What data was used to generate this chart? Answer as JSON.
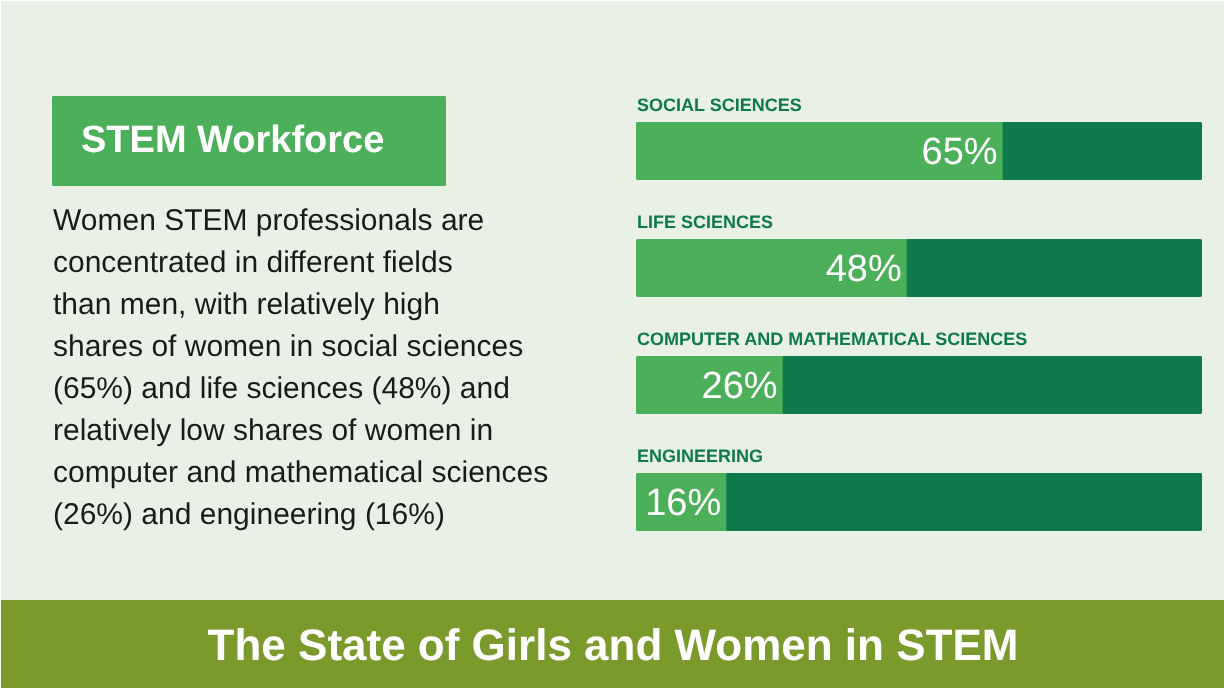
{
  "chart_data": {
    "type": "bar",
    "orientation": "horizontal",
    "stacked": true,
    "title": "STEM Workforce",
    "categories": [
      "SOCIAL SCIENCES",
      "LIFE SCIENCES",
      "COMPUTER AND MATHEMATICAL SCIENCES",
      "ENGINEERING"
    ],
    "series": [
      {
        "color": "#4caf5a",
        "values": [
          65,
          48,
          26,
          16
        ],
        "value_labels": [
          "65%",
          "48%",
          "26%",
          "16%"
        ]
      },
      {
        "color": "#0e7a4b",
        "values": [
          35,
          52,
          74,
          84
        ]
      }
    ],
    "xlim": [
      0,
      100
    ],
    "tick_labels": false,
    "grid": false,
    "annotations": [
      "Women STEM professionals are concentrated in different fields than men, with relatively high shares of women in social sciences (65%) and life sciences (48%) and relatively low shares of women in computer and mathematical sciences (26%) and engineering (16%)",
      "The State of Girls and Women in STEM"
    ]
  }
}
